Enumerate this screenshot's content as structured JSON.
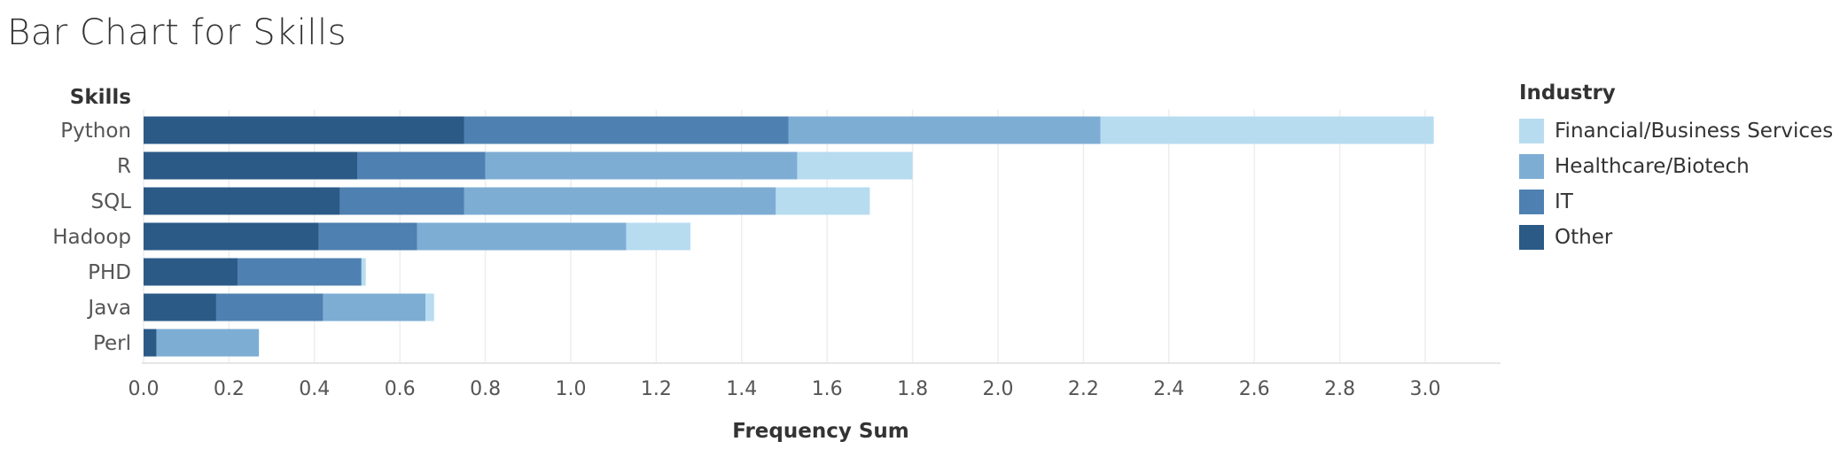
{
  "chart_data": {
    "type": "bar",
    "orientation": "horizontal",
    "stacked": true,
    "title": "Bar Chart for Skills",
    "category_axis_title": "Skills",
    "xlabel": "Frequency Sum",
    "xlim": [
      0,
      3.15
    ],
    "xticks": [
      "0.0",
      "0.2",
      "0.4",
      "0.6",
      "0.8",
      "1.0",
      "1.2",
      "1.4",
      "1.6",
      "1.8",
      "2.0",
      "2.2",
      "2.4",
      "2.6",
      "2.8",
      "3.0"
    ],
    "grid": true,
    "legend_position": "right",
    "legend_title": "Industry",
    "categories": [
      "Python",
      "R",
      "SQL",
      "Hadoop",
      "PHD",
      "Java",
      "Perl"
    ],
    "series": [
      {
        "name": "Other",
        "color": "#2b5a87",
        "values": [
          0.75,
          0.5,
          0.46,
          0.41,
          0.22,
          0.17,
          0.03
        ]
      },
      {
        "name": "IT",
        "color": "#4e80b1",
        "values": [
          0.76,
          0.3,
          0.29,
          0.23,
          0.29,
          0.25,
          0.0
        ]
      },
      {
        "name": "Healthcare/Biotech",
        "color": "#7eadd4",
        "values": [
          0.73,
          0.73,
          0.73,
          0.49,
          0.0,
          0.24,
          0.24
        ]
      },
      {
        "name": "Financial/Business Services",
        "color": "#b7dcf0",
        "values": [
          0.78,
          0.27,
          0.22,
          0.15,
          0.01,
          0.02,
          0.0
        ]
      }
    ],
    "legend_order": [
      "Financial/Business Services",
      "Healthcare/Biotech",
      "IT",
      "Other"
    ]
  }
}
